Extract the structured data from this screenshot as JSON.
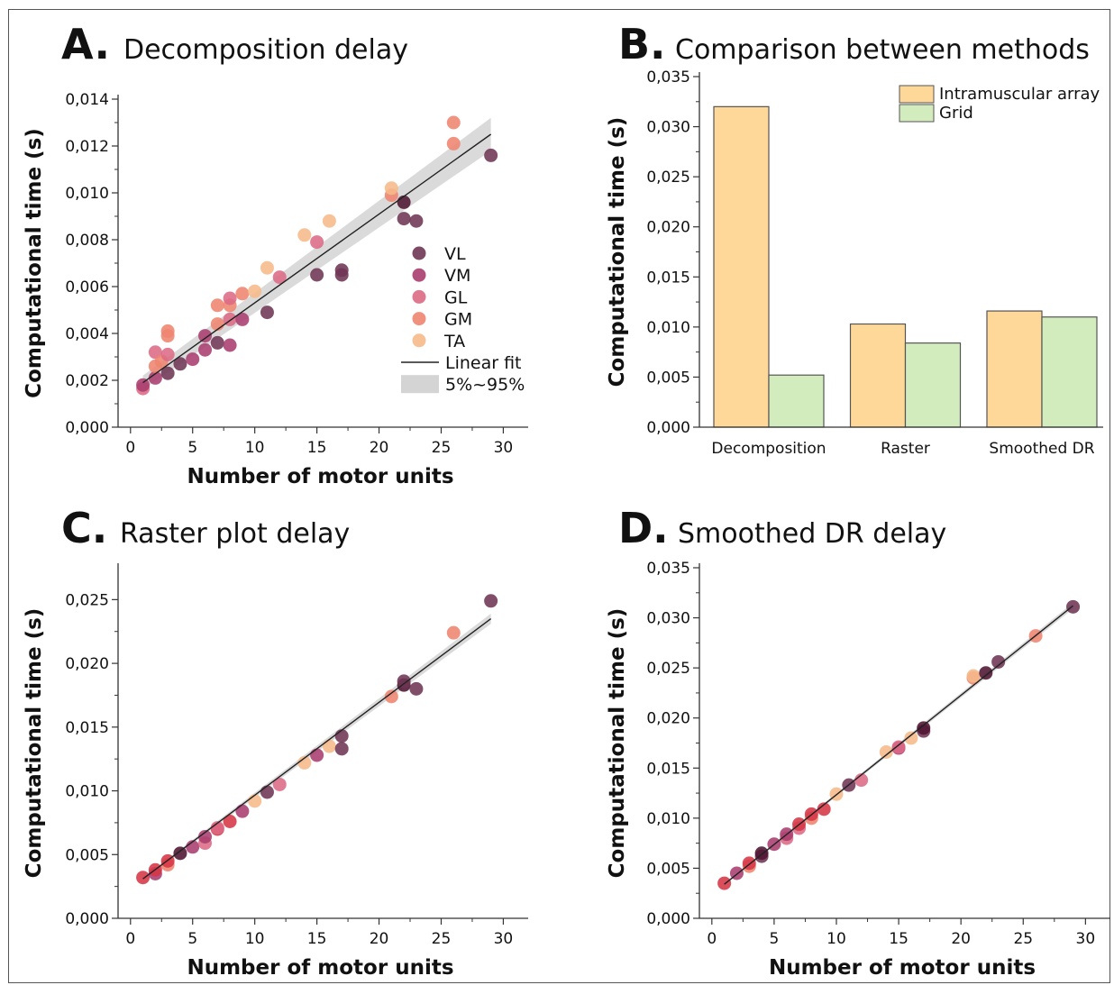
{
  "colors": {
    "VL": "#6e3654",
    "VM": "#a83d6e",
    "GL": "#dc6a84",
    "GM": "#ee8570",
    "TA": "#f6b98a",
    "darkVL": "#4f1532",
    "red": "#d63646",
    "fit": "#222222",
    "band": "#d4d4d4",
    "barIntramuscular": "#fdd898",
    "barGrid": "#d3ecbe",
    "barStroke": "#555555"
  },
  "chart_data": [
    {
      "id": "A",
      "type": "scatter",
      "letter": "A.",
      "title": "Decomposition delay",
      "xlabel": "Number of motor units",
      "ylabel": "Computational time (s)",
      "xlim": [
        -1,
        32
      ],
      "ylim": [
        0,
        0.014
      ],
      "xticks": [
        0,
        5,
        10,
        15,
        20,
        25,
        30
      ],
      "xtick_labels": [
        "0",
        "5",
        "10",
        "15",
        "20",
        "25",
        "30"
      ],
      "yticks": [
        0,
        0.002,
        0.004,
        0.006,
        0.008,
        0.01,
        0.012,
        0.014
      ],
      "ytick_labels": [
        "0,000",
        "0,002",
        "0,004",
        "0,006",
        "0,008",
        "0,010",
        "0,012",
        "0,014"
      ],
      "legend": {
        "position": "right",
        "entries": [
          {
            "label": "VL",
            "kind": "dot",
            "color_key": "VL"
          },
          {
            "label": "VM",
            "kind": "dot",
            "color_key": "VM"
          },
          {
            "label": "GL",
            "kind": "dot",
            "color_key": "GL"
          },
          {
            "label": "GM",
            "kind": "dot",
            "color_key": "GM"
          },
          {
            "label": "TA",
            "kind": "dot",
            "color_key": "TA"
          },
          {
            "label": "Linear fit",
            "kind": "line"
          },
          {
            "label": "5%~95%",
            "kind": "band"
          }
        ]
      },
      "fit": {
        "x0": 1,
        "y0": 0.0019,
        "x1": 29,
        "y1": 0.0125,
        "band0": 0.0003,
        "band1": 0.0007
      },
      "points": [
        {
          "x": 1,
          "y": 0.00165,
          "c": "GL"
        },
        {
          "x": 1,
          "y": 0.0018,
          "c": "VM"
        },
        {
          "x": 2,
          "y": 0.0021,
          "c": "VM"
        },
        {
          "x": 2,
          "y": 0.0026,
          "c": "GM"
        },
        {
          "x": 2,
          "y": 0.0032,
          "c": "GL"
        },
        {
          "x": 2.5,
          "y": 0.0028,
          "c": "GM"
        },
        {
          "x": 3,
          "y": 0.0023,
          "c": "VL"
        },
        {
          "x": 3,
          "y": 0.0031,
          "c": "GL"
        },
        {
          "x": 3,
          "y": 0.0039,
          "c": "GM"
        },
        {
          "x": 3,
          "y": 0.0041,
          "c": "GM"
        },
        {
          "x": 4,
          "y": 0.0027,
          "c": "VL"
        },
        {
          "x": 5,
          "y": 0.0029,
          "c": "VM"
        },
        {
          "x": 6,
          "y": 0.0033,
          "c": "VM"
        },
        {
          "x": 6,
          "y": 0.0039,
          "c": "VM"
        },
        {
          "x": 7,
          "y": 0.0036,
          "c": "VL"
        },
        {
          "x": 7,
          "y": 0.0044,
          "c": "GM"
        },
        {
          "x": 7,
          "y": 0.0052,
          "c": "GM"
        },
        {
          "x": 8,
          "y": 0.0035,
          "c": "VM"
        },
        {
          "x": 8,
          "y": 0.0046,
          "c": "GL"
        },
        {
          "x": 8,
          "y": 0.0052,
          "c": "GM"
        },
        {
          "x": 8,
          "y": 0.0055,
          "c": "GL"
        },
        {
          "x": 9,
          "y": 0.0046,
          "c": "VM"
        },
        {
          "x": 9,
          "y": 0.0057,
          "c": "GM"
        },
        {
          "x": 10,
          "y": 0.0058,
          "c": "TA"
        },
        {
          "x": 11,
          "y": 0.0049,
          "c": "VL"
        },
        {
          "x": 11,
          "y": 0.0068,
          "c": "TA"
        },
        {
          "x": 12,
          "y": 0.0064,
          "c": "GL"
        },
        {
          "x": 14,
          "y": 0.0082,
          "c": "TA"
        },
        {
          "x": 15,
          "y": 0.0065,
          "c": "VL"
        },
        {
          "x": 15,
          "y": 0.0079,
          "c": "GL"
        },
        {
          "x": 16,
          "y": 0.0088,
          "c": "TA"
        },
        {
          "x": 17,
          "y": 0.0065,
          "c": "VL"
        },
        {
          "x": 17,
          "y": 0.0067,
          "c": "VL"
        },
        {
          "x": 21,
          "y": 0.0099,
          "c": "GM"
        },
        {
          "x": 21,
          "y": 0.0102,
          "c": "TA"
        },
        {
          "x": 22,
          "y": 0.0089,
          "c": "VL"
        },
        {
          "x": 22,
          "y": 0.0096,
          "c": "darkVL"
        },
        {
          "x": 23,
          "y": 0.0088,
          "c": "VL"
        },
        {
          "x": 26,
          "y": 0.0121,
          "c": "GM"
        },
        {
          "x": 26,
          "y": 0.013,
          "c": "GM"
        },
        {
          "x": 29,
          "y": 0.0116,
          "c": "VL"
        }
      ]
    },
    {
      "id": "B",
      "type": "bar",
      "letter": "B.",
      "title": "Comparison between methods",
      "xlabel": "",
      "ylabel": "Computational time (s)",
      "ylim": [
        0,
        0.035
      ],
      "yticks": [
        0,
        0.005,
        0.01,
        0.015,
        0.02,
        0.025,
        0.03,
        0.035
      ],
      "ytick_labels": [
        "0,000",
        "0,005",
        "0,010",
        "0,015",
        "0,020",
        "0,025",
        "0,030",
        "0,035"
      ],
      "categories": [
        "Decomposition",
        "Raster",
        "Smoothed DR"
      ],
      "series": [
        {
          "name": "Intramuscular array",
          "values": [
            0.032,
            0.0103,
            0.0116
          ],
          "color_key": "barIntramuscular"
        },
        {
          "name": "Grid",
          "values": [
            0.0052,
            0.0084,
            0.011
          ],
          "color_key": "barGrid"
        }
      ],
      "legend": {
        "position": "top-right"
      }
    },
    {
      "id": "C",
      "type": "scatter",
      "letter": "C.",
      "title": "Raster plot delay",
      "xlabel": "Number of motor units",
      "ylabel": "Computational time (s)",
      "xlim": [
        -1,
        32
      ],
      "ylim": [
        0,
        0.0275
      ],
      "xticks": [
        0,
        5,
        10,
        15,
        20,
        25,
        30
      ],
      "xtick_labels": [
        "0",
        "5",
        "10",
        "15",
        "20",
        "25",
        "30"
      ],
      "yticks": [
        0,
        0.005,
        0.01,
        0.015,
        0.02,
        0.025
      ],
      "ytick_labels": [
        "0,000",
        "0,005",
        "0,010",
        "0,015",
        "0,020",
        "0,025"
      ],
      "fit": {
        "x0": 1,
        "y0": 0.0031,
        "x1": 29,
        "y1": 0.0235,
        "band0": 0.0001,
        "band1": 0.0004
      },
      "points": [
        {
          "x": 1,
          "y": 0.0032,
          "c": "red"
        },
        {
          "x": 2,
          "y": 0.0035,
          "c": "VM"
        },
        {
          "x": 2,
          "y": 0.0038,
          "c": "red"
        },
        {
          "x": 3,
          "y": 0.0042,
          "c": "GM"
        },
        {
          "x": 3,
          "y": 0.0045,
          "c": "red"
        },
        {
          "x": 4,
          "y": 0.0051,
          "c": "darkVL"
        },
        {
          "x": 5,
          "y": 0.0056,
          "c": "VM"
        },
        {
          "x": 6,
          "y": 0.0059,
          "c": "GL"
        },
        {
          "x": 6,
          "y": 0.0064,
          "c": "VM"
        },
        {
          "x": 7,
          "y": 0.007,
          "c": "red"
        },
        {
          "x": 7,
          "y": 0.0071,
          "c": "GL"
        },
        {
          "x": 8,
          "y": 0.0076,
          "c": "red"
        },
        {
          "x": 9,
          "y": 0.0084,
          "c": "VM"
        },
        {
          "x": 10,
          "y": 0.0092,
          "c": "TA"
        },
        {
          "x": 11,
          "y": 0.0099,
          "c": "VL"
        },
        {
          "x": 12,
          "y": 0.0105,
          "c": "GL"
        },
        {
          "x": 14,
          "y": 0.0122,
          "c": "TA"
        },
        {
          "x": 15,
          "y": 0.0128,
          "c": "VM"
        },
        {
          "x": 16,
          "y": 0.0135,
          "c": "TA"
        },
        {
          "x": 17,
          "y": 0.0133,
          "c": "VL"
        },
        {
          "x": 17,
          "y": 0.0143,
          "c": "VL"
        },
        {
          "x": 21,
          "y": 0.0174,
          "c": "GM"
        },
        {
          "x": 22,
          "y": 0.0183,
          "c": "darkVL"
        },
        {
          "x": 22,
          "y": 0.0186,
          "c": "VL"
        },
        {
          "x": 23,
          "y": 0.018,
          "c": "VL"
        },
        {
          "x": 26,
          "y": 0.0224,
          "c": "GM"
        },
        {
          "x": 29,
          "y": 0.0249,
          "c": "VL"
        }
      ]
    },
    {
      "id": "D",
      "type": "scatter",
      "letter": "D.",
      "title": "Smoothed DR delay",
      "xlabel": "Number of motor units",
      "ylabel": "Computational time (s)",
      "xlim": [
        -1,
        32
      ],
      "ylim": [
        0,
        0.035
      ],
      "xticks": [
        0,
        5,
        10,
        15,
        20,
        25,
        30
      ],
      "xtick_labels": [
        "0",
        "5",
        "10",
        "15",
        "20",
        "25",
        "30"
      ],
      "yticks": [
        0,
        0.005,
        0.01,
        0.015,
        0.02,
        0.025,
        0.03,
        0.035
      ],
      "ytick_labels": [
        "0,000",
        "0,005",
        "0,010",
        "0,015",
        "0,020",
        "0,025",
        "0,030",
        "0,035"
      ],
      "fit": {
        "x0": 1,
        "y0": 0.0034,
        "x1": 29,
        "y1": 0.0312,
        "band0": 0.0001,
        "band1": 0.0003
      },
      "points": [
        {
          "x": 1,
          "y": 0.0035,
          "c": "red"
        },
        {
          "x": 2,
          "y": 0.0045,
          "c": "VM"
        },
        {
          "x": 3,
          "y": 0.0052,
          "c": "GM"
        },
        {
          "x": 3,
          "y": 0.0055,
          "c": "red"
        },
        {
          "x": 4,
          "y": 0.0062,
          "c": "VL"
        },
        {
          "x": 4,
          "y": 0.0065,
          "c": "darkVL"
        },
        {
          "x": 5,
          "y": 0.0074,
          "c": "VM"
        },
        {
          "x": 6,
          "y": 0.008,
          "c": "GL"
        },
        {
          "x": 6,
          "y": 0.0084,
          "c": "VM"
        },
        {
          "x": 7,
          "y": 0.009,
          "c": "GL"
        },
        {
          "x": 7,
          "y": 0.0094,
          "c": "red"
        },
        {
          "x": 8,
          "y": 0.01,
          "c": "GM"
        },
        {
          "x": 8,
          "y": 0.0104,
          "c": "red"
        },
        {
          "x": 9,
          "y": 0.0109,
          "c": "red"
        },
        {
          "x": 10,
          "y": 0.0124,
          "c": "TA"
        },
        {
          "x": 11,
          "y": 0.0133,
          "c": "VL"
        },
        {
          "x": 12,
          "y": 0.0138,
          "c": "GL"
        },
        {
          "x": 14,
          "y": 0.0166,
          "c": "TA"
        },
        {
          "x": 15,
          "y": 0.017,
          "c": "VM"
        },
        {
          "x": 15,
          "y": 0.0171,
          "c": "GL"
        },
        {
          "x": 16,
          "y": 0.018,
          "c": "TA"
        },
        {
          "x": 17,
          "y": 0.0187,
          "c": "VL"
        },
        {
          "x": 17,
          "y": 0.019,
          "c": "darkVL"
        },
        {
          "x": 21,
          "y": 0.024,
          "c": "GM"
        },
        {
          "x": 21,
          "y": 0.0242,
          "c": "TA"
        },
        {
          "x": 22,
          "y": 0.0245,
          "c": "darkVL"
        },
        {
          "x": 23,
          "y": 0.0256,
          "c": "VL"
        },
        {
          "x": 26,
          "y": 0.0282,
          "c": "GM"
        },
        {
          "x": 29,
          "y": 0.0311,
          "c": "VL"
        }
      ]
    }
  ]
}
